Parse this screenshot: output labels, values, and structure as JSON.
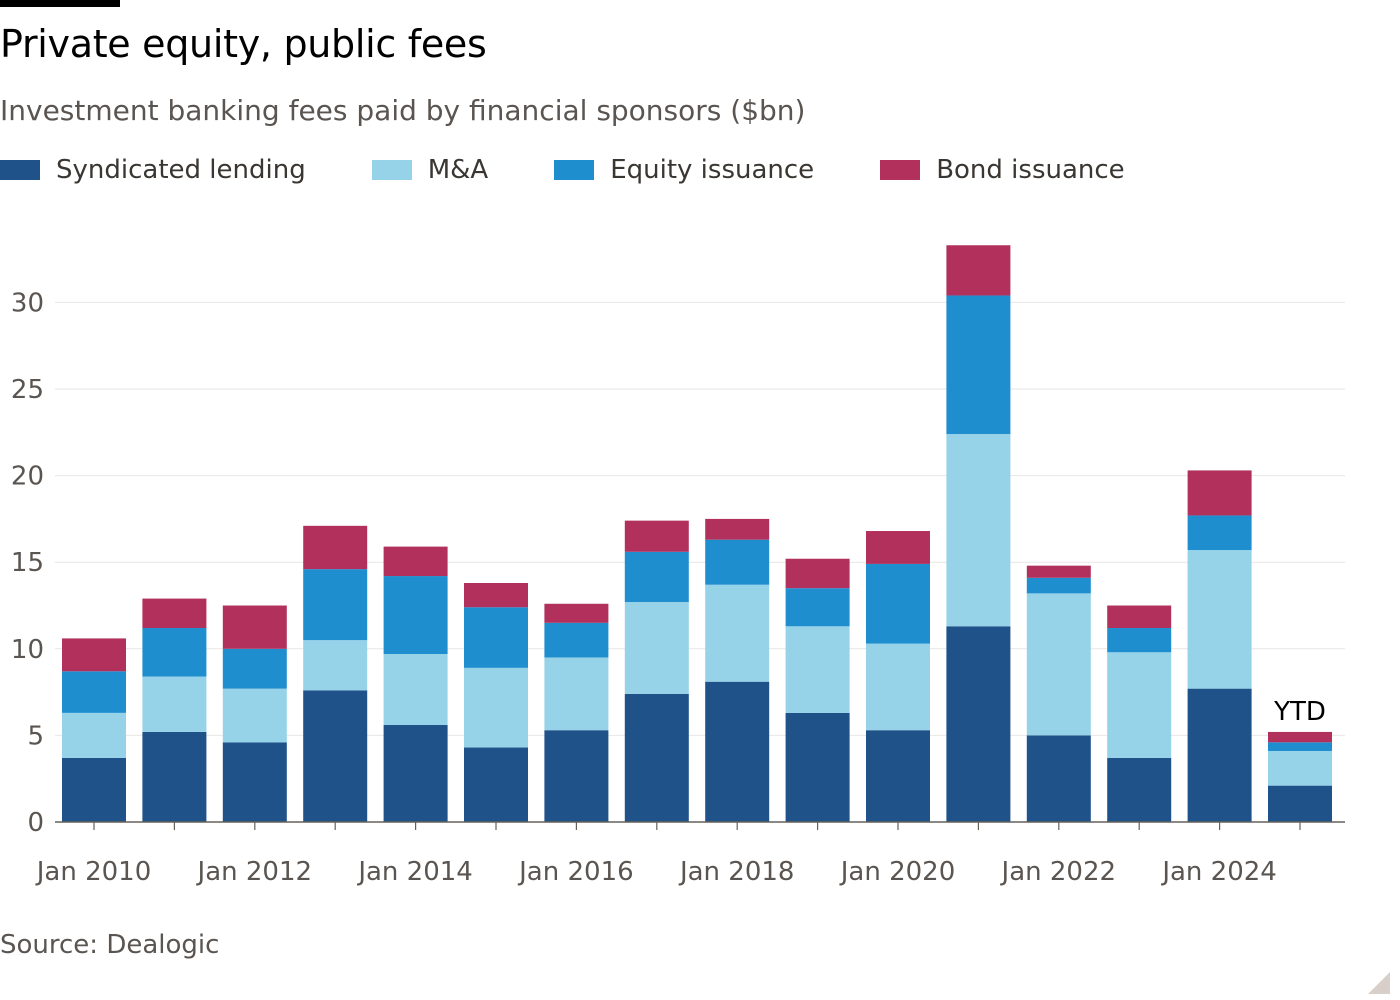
{
  "title": "Private equity, public fees",
  "subtitle": "Investment banking fees paid by financial sponsors ($bn)",
  "source": "Source: Dealogic",
  "colors": {
    "syndicated_lending": "#1f5289",
    "ma": "#96d2e8",
    "equity_issuance": "#1f8ecf",
    "bond_issuance": "#b2315c",
    "gridline": "#e9e6e3",
    "axis_text": "#5a5551"
  },
  "chart_data": {
    "type": "bar",
    "stacked": true,
    "title": "Private equity, public fees",
    "subtitle": "Investment banking fees paid by financial sponsors ($bn)",
    "xlabel": "",
    "ylabel": "",
    "ylim": [
      0,
      35
    ],
    "yticks": [
      0,
      5,
      10,
      15,
      20,
      25,
      30
    ],
    "grid": true,
    "legend_position": "top-left",
    "categories": [
      "2010",
      "2011",
      "2012",
      "2013",
      "2014",
      "2015",
      "2016",
      "2017",
      "2018",
      "2019",
      "2020",
      "2021",
      "2022",
      "2023",
      "2024",
      "2025"
    ],
    "xtick_labels": [
      {
        "index": 0,
        "label": "Jan 2010"
      },
      {
        "index": 2,
        "label": "Jan 2012"
      },
      {
        "index": 4,
        "label": "Jan 2014"
      },
      {
        "index": 6,
        "label": "Jan 2016"
      },
      {
        "index": 8,
        "label": "Jan 2018"
      },
      {
        "index": 10,
        "label": "Jan 2020"
      },
      {
        "index": 12,
        "label": "Jan 2022"
      },
      {
        "index": 14,
        "label": "Jan 2024"
      }
    ],
    "series": [
      {
        "name": "Syndicated lending",
        "color": "#1f5289",
        "values": [
          3.7,
          5.2,
          4.6,
          7.6,
          5.6,
          4.3,
          5.3,
          7.4,
          8.1,
          6.3,
          5.3,
          11.3,
          5.0,
          3.7,
          7.7,
          2.1
        ]
      },
      {
        "name": "M&A",
        "color": "#96d2e8",
        "values": [
          2.6,
          3.2,
          3.1,
          2.9,
          4.1,
          4.6,
          4.2,
          5.3,
          5.6,
          5.0,
          5.0,
          11.1,
          8.2,
          6.1,
          8.0,
          2.0
        ]
      },
      {
        "name": "Equity issuance",
        "color": "#1f8ecf",
        "values": [
          2.4,
          2.8,
          2.3,
          4.1,
          4.5,
          3.5,
          2.0,
          2.9,
          2.6,
          2.2,
          4.6,
          8.0,
          0.9,
          1.4,
          2.0,
          0.5
        ]
      },
      {
        "name": "Bond issuance",
        "color": "#b2315c",
        "values": [
          1.9,
          1.7,
          2.5,
          2.5,
          1.7,
          1.4,
          1.1,
          1.8,
          1.2,
          1.7,
          1.9,
          2.9,
          0.7,
          1.3,
          2.6,
          0.6
        ]
      }
    ],
    "annotations": [
      {
        "category": "2025",
        "text": "YTD"
      }
    ]
  }
}
